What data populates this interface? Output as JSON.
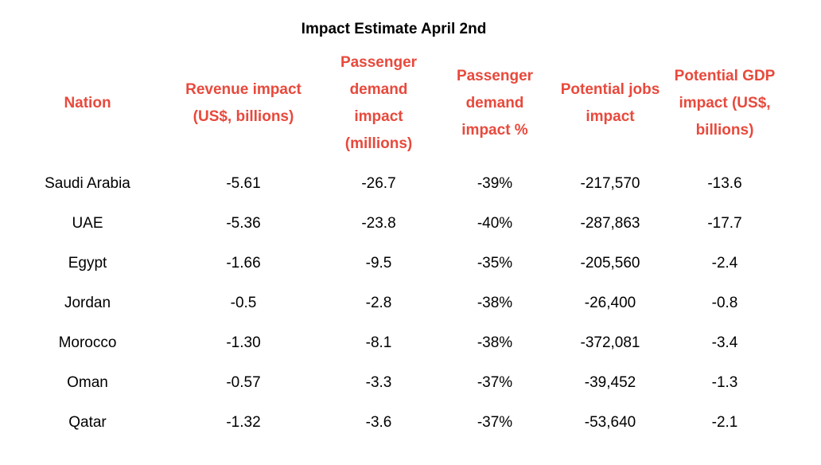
{
  "title": "Impact Estimate April 2nd",
  "columns": [
    [
      "Nation"
    ],
    [
      "Revenue impact",
      "(US$, billions)"
    ],
    [
      "Passenger",
      "demand",
      "impact",
      "(millions)"
    ],
    [
      "Passenger",
      "demand",
      "impact %"
    ],
    [
      "Potential jobs",
      "impact"
    ],
    [
      "Potential GDP",
      "impact (US$,",
      "billions)"
    ]
  ],
  "rows": [
    [
      "Saudi Arabia",
      "-5.61",
      "-26.7",
      "-39%",
      "-217,570",
      "-13.6"
    ],
    [
      "UAE",
      "-5.36",
      "-23.8",
      "-40%",
      "-287,863",
      "-17.7"
    ],
    [
      "Egypt",
      "-1.66",
      "-9.5",
      "-35%",
      "-205,560",
      "-2.4"
    ],
    [
      "Jordan",
      "-0.5",
      "-2.8",
      "-38%",
      "-26,400",
      "-0.8"
    ],
    [
      "Morocco",
      "-1.30",
      "-8.1",
      "-38%",
      "-372,081",
      "-3.4"
    ],
    [
      "Oman",
      "-0.57",
      "-3.3",
      "-37%",
      "-39,452",
      "-1.3"
    ],
    [
      "Qatar",
      "-1.32",
      "-3.6",
      "-37%",
      "-53,640",
      "-2.1"
    ]
  ],
  "colors": {
    "header": "#e8493c",
    "text": "#000000",
    "background": "#ffffff"
  }
}
